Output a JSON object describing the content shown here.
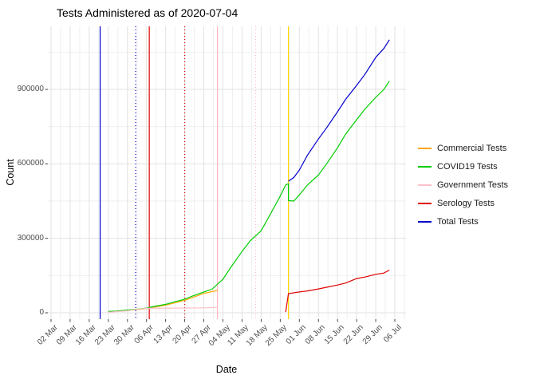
{
  "chart_data": {
    "type": "line",
    "title": "Tests Administered as of 2020-07-04",
    "xlabel": "Date",
    "ylabel": "Count",
    "x_range": [
      "2020-03-01",
      "2020-07-06"
    ],
    "ylim": [
      0,
      1150000
    ],
    "grid": "on",
    "legend_position": "right",
    "x_ticks": [
      {
        "label": "02 Mar",
        "date": "2020-03-02"
      },
      {
        "label": "09 Mar",
        "date": "2020-03-09"
      },
      {
        "label": "16 Mar",
        "date": "2020-03-16"
      },
      {
        "label": "23 Mar",
        "date": "2020-03-23"
      },
      {
        "label": "30 Mar",
        "date": "2020-03-30"
      },
      {
        "label": "06 Apr",
        "date": "2020-04-06"
      },
      {
        "label": "13 Apr",
        "date": "2020-04-13"
      },
      {
        "label": "20 Apr",
        "date": "2020-04-20"
      },
      {
        "label": "27 Apr",
        "date": "2020-04-27"
      },
      {
        "label": "04 May",
        "date": "2020-05-04"
      },
      {
        "label": "11 May",
        "date": "2020-05-11"
      },
      {
        "label": "18 May",
        "date": "2020-05-18"
      },
      {
        "label": "25 May",
        "date": "2020-05-25"
      },
      {
        "label": "01 Jun",
        "date": "2020-06-01"
      },
      {
        "label": "08 Jun",
        "date": "2020-06-08"
      },
      {
        "label": "15 Jun",
        "date": "2020-06-15"
      },
      {
        "label": "22 Jun",
        "date": "2020-06-22"
      },
      {
        "label": "29 Jun",
        "date": "2020-06-29"
      },
      {
        "label": "06 Jul",
        "date": "2020-07-06"
      }
    ],
    "y_ticks": [
      {
        "label": "0",
        "value": 0
      },
      {
        "label": "300000",
        "value": 300000
      },
      {
        "label": "600000",
        "value": 600000
      },
      {
        "label": "900000",
        "value": 900000
      }
    ],
    "y_minor": [
      150000,
      450000,
      750000,
      1050000
    ],
    "series": [
      {
        "name": "Commercial Tests",
        "color": "#FFA500",
        "style": "solid",
        "points": [
          [
            "2020-03-23",
            4000
          ],
          [
            "2020-03-30",
            9000
          ],
          [
            "2020-04-06",
            17000
          ],
          [
            "2020-04-13",
            31000
          ],
          [
            "2020-04-20",
            50000
          ],
          [
            "2020-04-27",
            78000
          ],
          [
            "2020-05-02",
            90000
          ]
        ]
      },
      {
        "name": "COVID19 Tests",
        "color": "#00CC00",
        "style": "solid",
        "points": [
          [
            "2020-03-23",
            5000
          ],
          [
            "2020-03-26",
            7000
          ],
          [
            "2020-03-30",
            11000
          ],
          [
            "2020-04-02",
            14000
          ],
          [
            "2020-04-06",
            19000
          ],
          [
            "2020-04-09",
            26000
          ],
          [
            "2020-04-13",
            34000
          ],
          [
            "2020-04-16",
            43000
          ],
          [
            "2020-04-20",
            55000
          ],
          [
            "2020-04-23",
            68000
          ],
          [
            "2020-04-27",
            84000
          ],
          [
            "2020-04-30",
            95000
          ],
          [
            "2020-05-04",
            135000
          ],
          [
            "2020-05-07",
            185000
          ],
          [
            "2020-05-11",
            247000
          ],
          [
            "2020-05-14",
            290000
          ],
          [
            "2020-05-18",
            330000
          ],
          [
            "2020-05-21",
            390000
          ],
          [
            "2020-05-25",
            470000
          ],
          [
            "2020-05-27",
            515000
          ],
          [
            "2020-05-28",
            520000
          ],
          [
            "2020-05-28",
            452000
          ],
          [
            "2020-05-30",
            450000
          ],
          [
            "2020-06-01",
            475000
          ],
          [
            "2020-06-04",
            515000
          ],
          [
            "2020-06-08",
            555000
          ],
          [
            "2020-06-11",
            600000
          ],
          [
            "2020-06-15",
            665000
          ],
          [
            "2020-06-18",
            720000
          ],
          [
            "2020-06-22",
            778000
          ],
          [
            "2020-06-25",
            820000
          ],
          [
            "2020-06-29",
            868000
          ],
          [
            "2020-07-02",
            900000
          ],
          [
            "2020-07-04",
            933000
          ]
        ]
      },
      {
        "name": "Government Tests",
        "color": "#FFC0CB",
        "style": "solid",
        "points": [
          [
            "2020-03-23",
            2000
          ],
          [
            "2020-03-30",
            8000
          ],
          [
            "2020-04-03",
            15000
          ],
          [
            "2020-04-06",
            18000
          ],
          [
            "2020-04-13",
            19000
          ],
          [
            "2020-04-20",
            19000
          ],
          [
            "2020-04-27",
            20000
          ],
          [
            "2020-05-02",
            22000
          ]
        ]
      },
      {
        "name": "Serology Tests",
        "color": "#E00000",
        "style": "solid",
        "points": [
          [
            "2020-05-27",
            3000
          ],
          [
            "2020-05-28",
            77000
          ],
          [
            "2020-06-01",
            84000
          ],
          [
            "2020-06-04",
            88000
          ],
          [
            "2020-06-08",
            96000
          ],
          [
            "2020-06-11",
            103000
          ],
          [
            "2020-06-15",
            112000
          ],
          [
            "2020-06-18",
            120000
          ],
          [
            "2020-06-22",
            138000
          ],
          [
            "2020-06-25",
            144000
          ],
          [
            "2020-06-29",
            155000
          ],
          [
            "2020-07-02",
            160000
          ],
          [
            "2020-07-04",
            172000
          ]
        ]
      },
      {
        "name": "Total Tests",
        "color": "#0000CD",
        "style": "solid",
        "points": [
          [
            "2020-05-28",
            530000
          ],
          [
            "2020-05-30",
            545000
          ],
          [
            "2020-06-01",
            575000
          ],
          [
            "2020-06-04",
            635000
          ],
          [
            "2020-06-08",
            700000
          ],
          [
            "2020-06-11",
            745000
          ],
          [
            "2020-06-15",
            810000
          ],
          [
            "2020-06-18",
            860000
          ],
          [
            "2020-06-22",
            916000
          ],
          [
            "2020-06-25",
            960000
          ],
          [
            "2020-06-29",
            1029000
          ],
          [
            "2020-07-02",
            1065000
          ],
          [
            "2020-07-04",
            1100000
          ]
        ]
      }
    ],
    "vlines": [
      {
        "date": "2020-03-20",
        "color": "#0000CD",
        "style": "solid"
      },
      {
        "date": "2020-04-02",
        "color": "#0000CD",
        "style": "dotted"
      },
      {
        "date": "2020-04-07",
        "color": "#E00000",
        "style": "solid"
      },
      {
        "date": "2020-04-20",
        "color": "#E00000",
        "style": "dotted"
      },
      {
        "date": "2020-05-02",
        "color": "#FFB6C1",
        "style": "solid"
      },
      {
        "date": "2020-05-16",
        "color": "#FFB6C1",
        "style": "dotted"
      },
      {
        "date": "2020-05-28",
        "color": "#FFD700",
        "style": "solid"
      }
    ]
  }
}
